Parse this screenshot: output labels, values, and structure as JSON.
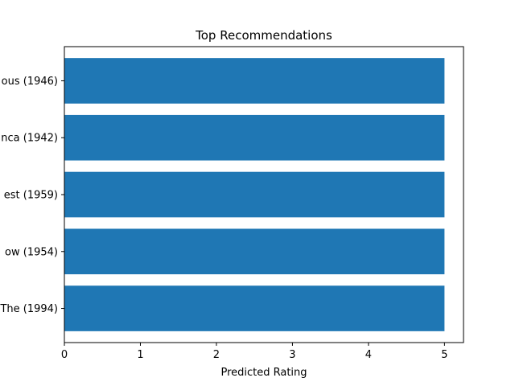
{
  "chart_data": {
    "type": "bar",
    "orientation": "horizontal",
    "title": "Top Recommendations",
    "xlabel": "Predicted Rating",
    "ylabel": "",
    "categories": [
      "ous (1946)",
      "nca (1942)",
      "est (1959)",
      "ow (1954)",
      "The (1994)"
    ],
    "values": [
      5,
      5,
      5,
      5,
      5
    ],
    "xlim": [
      0,
      5.25
    ],
    "xticks": [
      0,
      1,
      2,
      3,
      4,
      5
    ],
    "grid": false,
    "bar_color": "#1f77b4"
  }
}
